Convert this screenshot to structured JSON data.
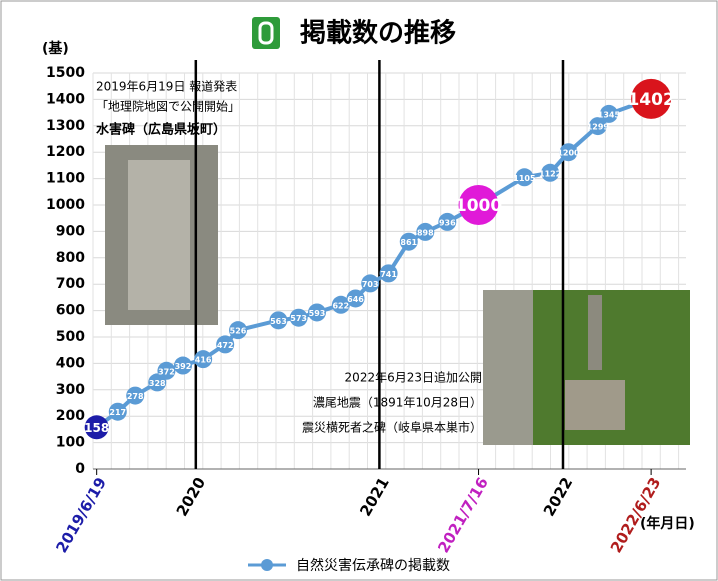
{
  "chart_data": {
    "type": "line",
    "title": "掲載数の推移",
    "y_label": "(基)",
    "x_label": "(年月日)",
    "legend": "自然災害伝承碑の掲載数",
    "annotations": [
      [
        "2019年6月19日 報道発表",
        "「地理院地図で公開開始」",
        "水害碑（広島県坂町）"
      ],
      [
        "2022年6月23日追加公開",
        "濃尾地震（1891年10月28日）",
        "震災横死者之碑（岐阜県本巣市）"
      ]
    ],
    "x": [
      2019.46,
      2019.575,
      2019.67,
      2019.79,
      2019.84,
      2019.93,
      2020.04,
      2020.16,
      2020.23,
      2020.45,
      2020.56,
      2020.66,
      2020.79,
      2020.87,
      2020.95,
      2021.05,
      2021.16,
      2021.25,
      2021.37,
      2021.54,
      2021.79,
      2021.93,
      2022.03,
      2022.19,
      2022.25,
      2022.48
    ],
    "values": [
      158,
      217,
      278,
      328,
      372,
      392,
      416,
      472,
      526,
      563,
      573,
      593,
      622,
      646,
      703,
      741,
      861,
      898,
      936,
      1000,
      1105,
      1122,
      1200,
      1299,
      1345,
      1402
    ],
    "color": "#5b9bd5",
    "point_colors": [
      "#1c1ca8",
      "#5b9bd5",
      "#5b9bd5",
      "#5b9bd5",
      "#5b9bd5",
      "#5b9bd5",
      "#5b9bd5",
      "#5b9bd5",
      "#5b9bd5",
      "#5b9bd5",
      "#5b9bd5",
      "#5b9bd5",
      "#5b9bd5",
      "#5b9bd5",
      "#5b9bd5",
      "#5b9bd5",
      "#5b9bd5",
      "#5b9bd5",
      "#5b9bd5",
      "#e01ad8",
      "#5b9bd5",
      "#5b9bd5",
      "#5b9bd5",
      "#5b9bd5",
      "#5b9bd5",
      "#d9141c"
    ],
    "xlim": [
      2019.44,
      2022.67
    ],
    "xticks": [
      {
        "value": 2019.46,
        "label": "2019/6/19"
      },
      2020,
      2021,
      {
        "value": 2021.54,
        "label": "2021/7/16"
      },
      2022,
      {
        "value": 2022.48,
        "label": "2022/6/23"
      }
    ],
    "xtick_colors": [
      "#1c1ca8",
      "#000000",
      "#000000",
      "#c020c0",
      "#000000",
      "#b01c1c"
    ],
    "ylim": [
      0,
      1500
    ],
    "yticks": [
      0,
      100,
      200,
      300,
      400,
      500,
      600,
      700,
      800,
      900,
      1000,
      1100,
      1200,
      1300,
      1400,
      1500
    ],
    "grid": true
  }
}
